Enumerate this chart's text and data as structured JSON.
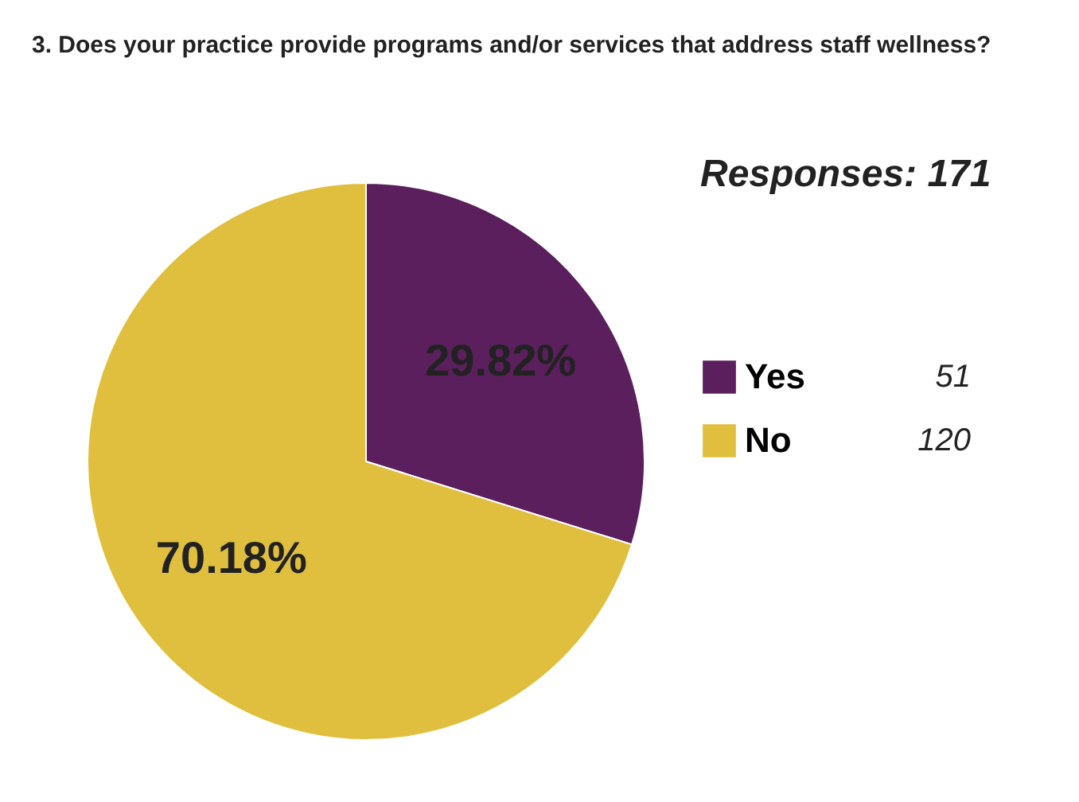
{
  "chart_data": {
    "type": "pie",
    "title": "3. Does your practice provide programs and/or services that address staff wellness?",
    "categories": [
      "Yes",
      "No"
    ],
    "values": [
      29.82,
      70.18
    ],
    "value_labels": [
      "29.82%",
      "70.18%"
    ],
    "colors": [
      "#5a1f5c",
      "#e0bf3e"
    ],
    "legend": "right",
    "annotations": [
      "Responses: 171",
      "51",
      "120"
    ]
  }
}
